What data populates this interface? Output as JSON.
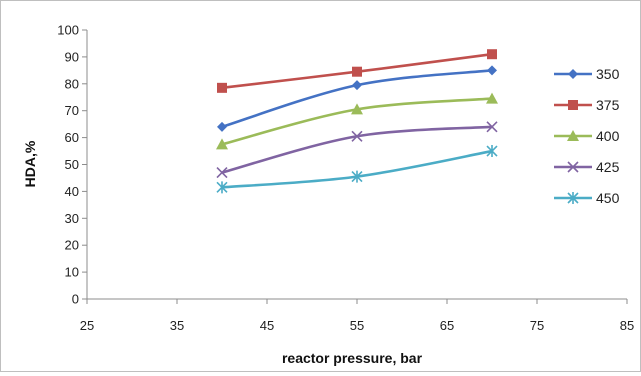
{
  "chart_data": {
    "type": "line",
    "title": "",
    "xlabel": "reactor pressure, bar",
    "ylabel": "HDA,%",
    "xlim": [
      25,
      85
    ],
    "ylim": [
      0,
      100
    ],
    "xticks": [
      25,
      35,
      45,
      55,
      65,
      75,
      85
    ],
    "yticks": [
      0,
      10,
      20,
      30,
      40,
      50,
      60,
      70,
      80,
      90,
      100
    ],
    "grid": false,
    "legend_position": "right",
    "x": [
      40,
      55,
      70
    ],
    "series": [
      {
        "name": "350",
        "values": [
          64,
          79.5,
          85
        ],
        "color": "#4472C4",
        "marker": "diamond"
      },
      {
        "name": "375",
        "values": [
          78.5,
          84.5,
          91
        ],
        "color": "#C0504D",
        "marker": "square"
      },
      {
        "name": "400",
        "values": [
          57.5,
          70.5,
          74.5
        ],
        "color": "#9BBB59",
        "marker": "triangle"
      },
      {
        "name": "425",
        "values": [
          47,
          60.5,
          64
        ],
        "color": "#8064A2",
        "marker": "x"
      },
      {
        "name": "450",
        "values": [
          41.5,
          45.5,
          55
        ],
        "color": "#4BACC6",
        "marker": "star"
      }
    ]
  }
}
